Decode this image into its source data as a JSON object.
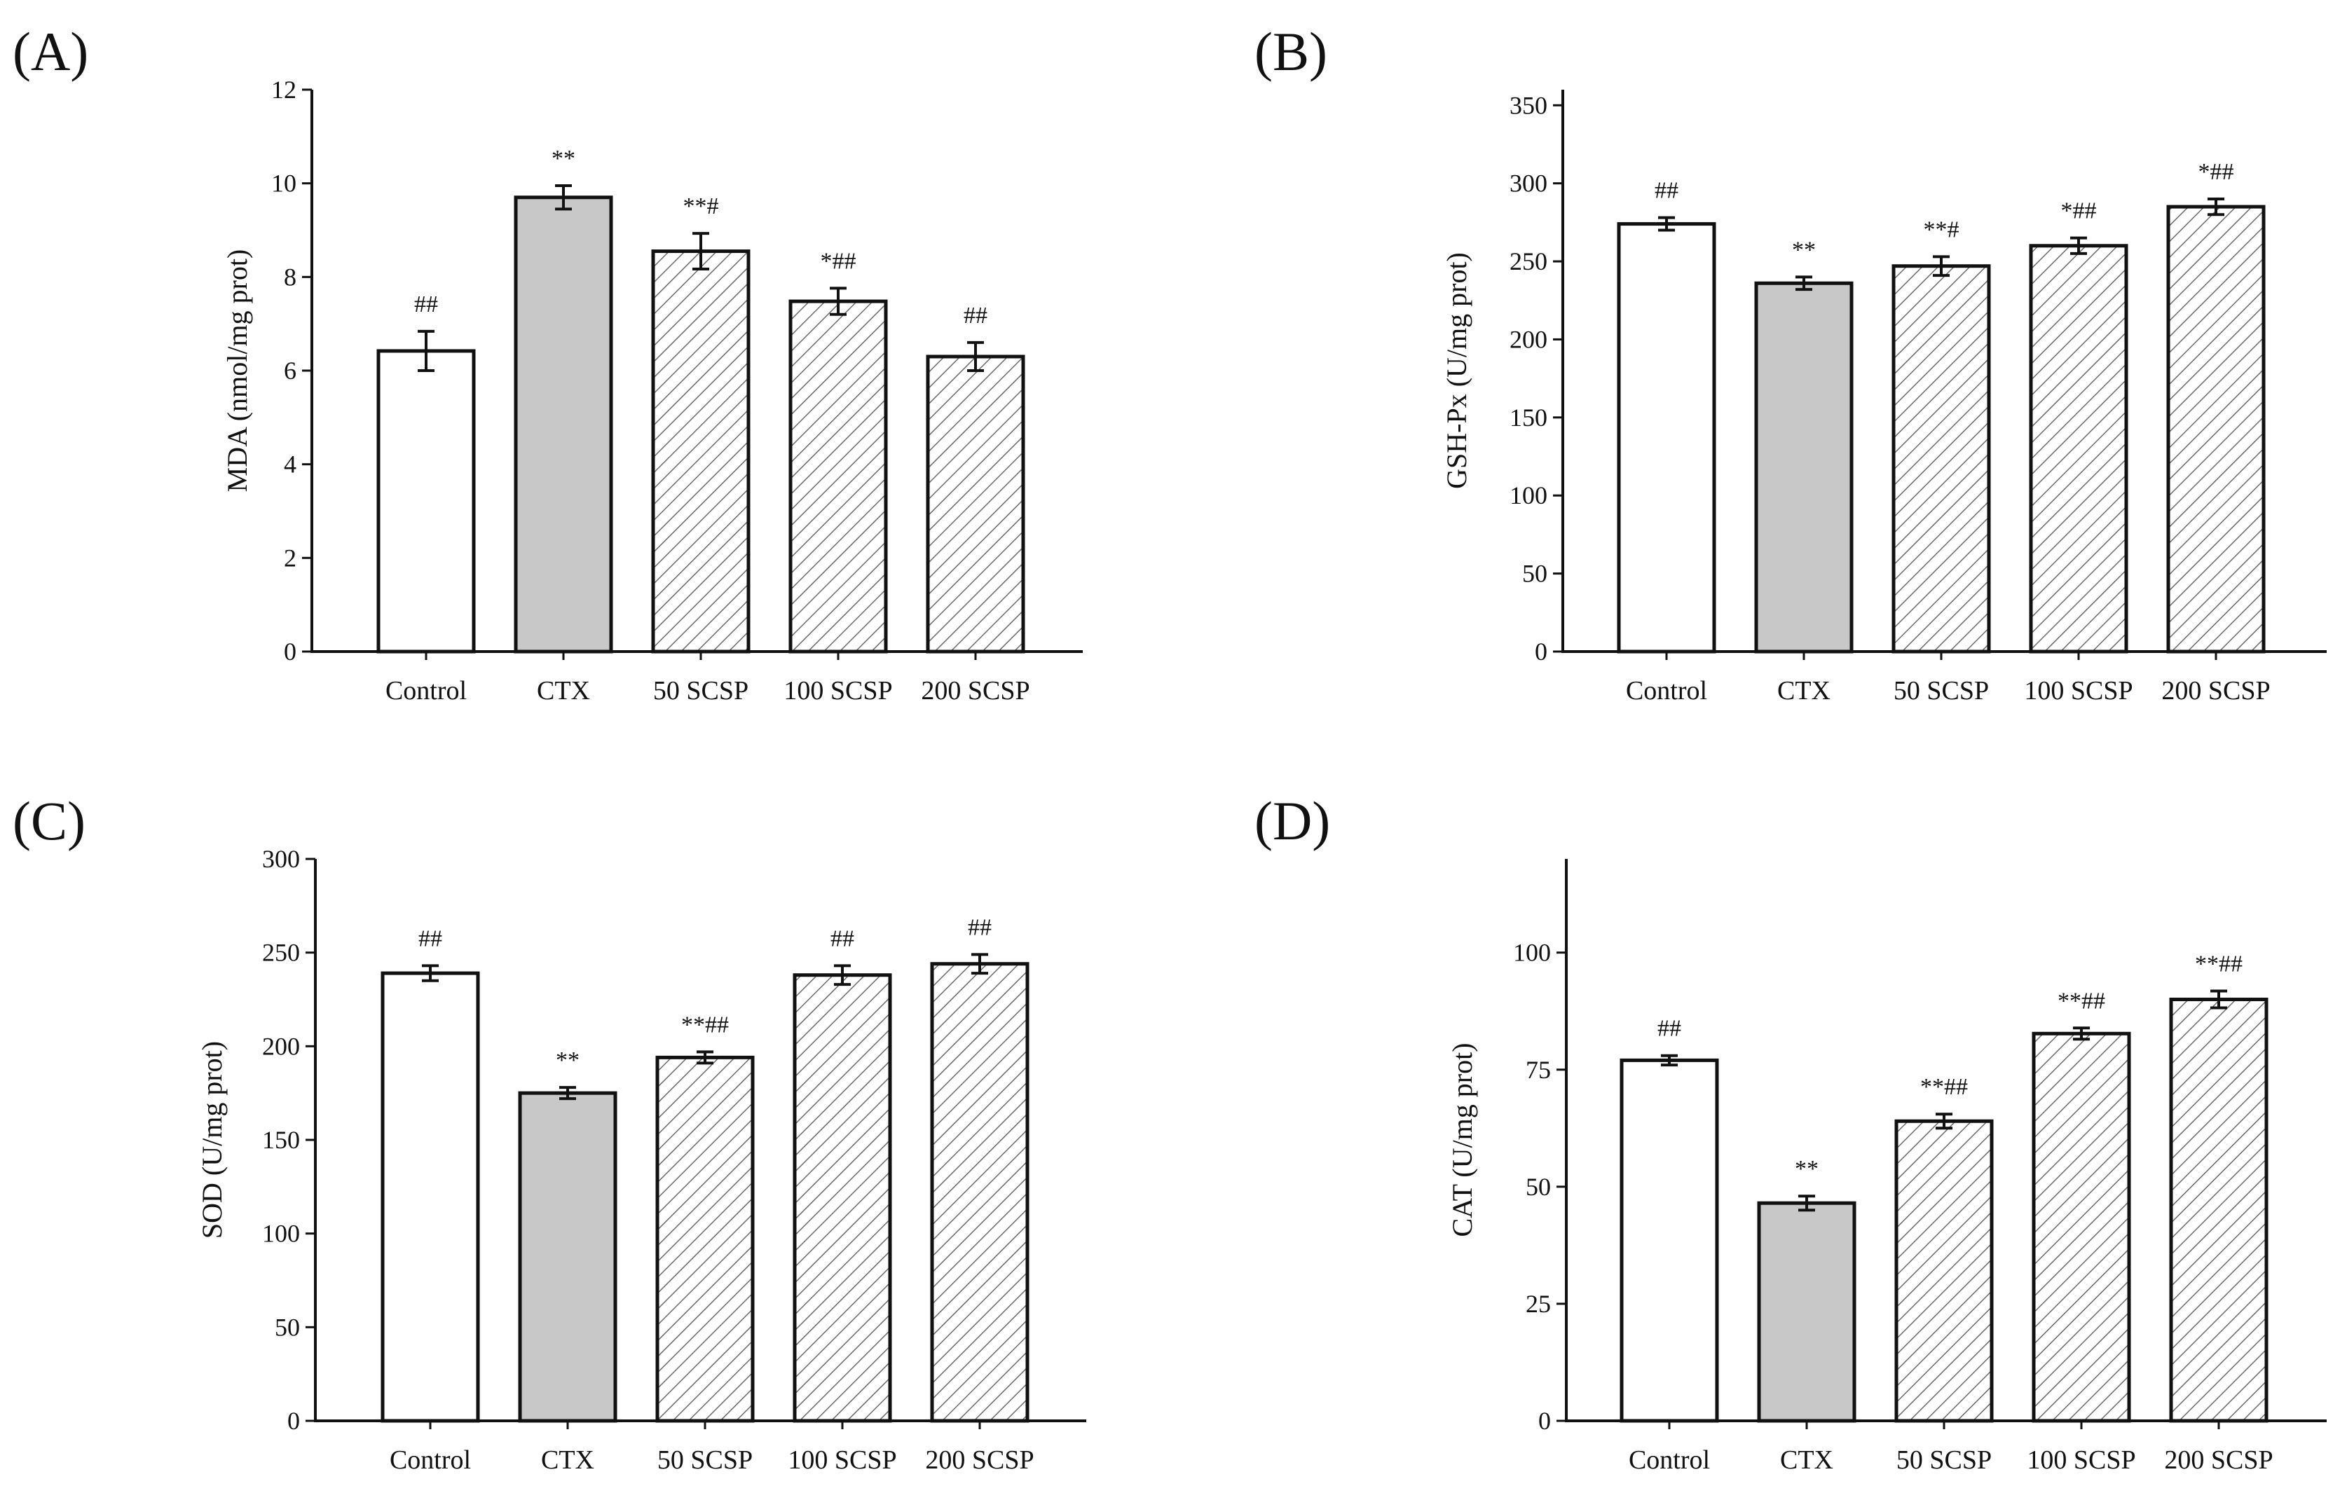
{
  "figure": {
    "colors": {
      "axis": "#111111",
      "control_fill": "#ffffff",
      "ctx_fill": "#c8c8c8",
      "scsp_fill": "#ffffff",
      "hatch": "#6a6a6a",
      "bar_stroke": "#111111"
    }
  },
  "chart_data": [
    {
      "panel": "(A)",
      "type": "bar",
      "ylabel": "MDA (nmol/mg prot)",
      "xlabel": "",
      "ylim": [
        0,
        12
      ],
      "yticks": [
        0,
        2,
        4,
        6,
        8,
        10,
        12
      ],
      "categories": [
        "Control",
        "CTX",
        "50 SCSP",
        "100 SCSP",
        "200 SCSP"
      ],
      "values": [
        6.42,
        9.7,
        8.55,
        7.48,
        6.3
      ],
      "errors": [
        0.42,
        0.25,
        0.38,
        0.28,
        0.3
      ],
      "annotations": [
        "##",
        "**",
        "**#",
        "*##",
        "##"
      ],
      "fills": [
        "open",
        "gray",
        "hatched",
        "hatched",
        "hatched"
      ]
    },
    {
      "panel": "(B)",
      "type": "bar",
      "ylabel": "GSH-Px (U/mg prot)",
      "xlabel": "",
      "ylim": [
        0,
        360
      ],
      "yticks": [
        0,
        50,
        100,
        150,
        200,
        250,
        300,
        350
      ],
      "categories": [
        "Control",
        "CTX",
        "50 SCSP",
        "100 SCSP",
        "200 SCSP"
      ],
      "values": [
        274,
        236,
        247,
        260,
        285
      ],
      "errors": [
        4,
        4,
        6,
        5,
        5
      ],
      "annotations": [
        "##",
        "**",
        "**#",
        "*##",
        "*##"
      ],
      "fills": [
        "open",
        "gray",
        "hatched",
        "hatched",
        "hatched"
      ]
    },
    {
      "panel": "(C)",
      "type": "bar",
      "ylabel": "SOD (U/mg prot)",
      "xlabel": "",
      "ylim": [
        0,
        300
      ],
      "yticks": [
        0,
        50,
        100,
        150,
        200,
        250,
        300
      ],
      "categories": [
        "Control",
        "CTX",
        "50 SCSP",
        "100 SCSP",
        "200 SCSP"
      ],
      "values": [
        239,
        175,
        194,
        238,
        244
      ],
      "errors": [
        4,
        3,
        3,
        5,
        5
      ],
      "annotations": [
        "##",
        "**",
        "**##",
        "##",
        "##"
      ],
      "fills": [
        "open",
        "gray",
        "hatched",
        "hatched",
        "hatched"
      ]
    },
    {
      "panel": "(D)",
      "type": "bar",
      "ylabel": "CAT (U/mg prot)",
      "xlabel": "",
      "ylim": [
        0,
        120
      ],
      "yticks": [
        0,
        25,
        50,
        75,
        100
      ],
      "categories": [
        "Control",
        "CTX",
        "50 SCSP",
        "100 SCSP",
        "200 SCSP"
      ],
      "values": [
        77,
        46.5,
        64,
        82.7,
        90
      ],
      "errors": [
        1,
        1.5,
        1.5,
        1.2,
        1.8
      ],
      "annotations": [
        "##",
        "**",
        "**##",
        "**##",
        "**##"
      ],
      "fills": [
        "open",
        "gray",
        "hatched",
        "hatched",
        "hatched"
      ]
    }
  ]
}
